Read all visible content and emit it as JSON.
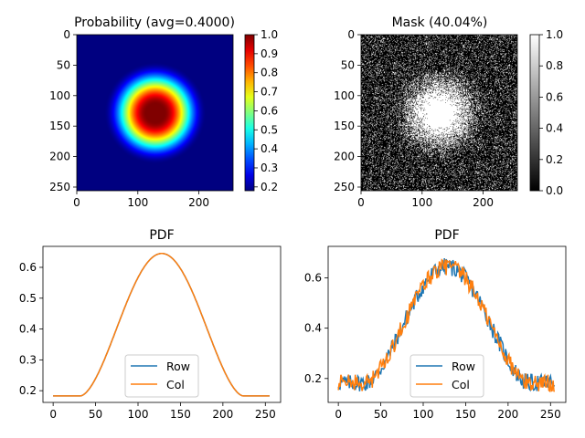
{
  "chart_data": [
    {
      "type": "heatmap",
      "title": "Probability (avg=0.4000)",
      "colormap": "jet",
      "image_size": [
        256,
        256
      ],
      "center": [
        128,
        128
      ],
      "x_ticks": [
        0,
        100,
        200
      ],
      "y_ticks": [
        0,
        50,
        100,
        150,
        200,
        250
      ],
      "colorbar": {
        "range": [
          0.18,
          1.0
        ],
        "ticks": [
          0.2,
          0.3,
          0.4,
          0.5,
          0.6,
          0.7,
          0.8,
          0.9,
          1.0
        ]
      }
    },
    {
      "type": "heatmap",
      "title": "Mask (40.04%)",
      "colormap": "gray",
      "image_size": [
        256,
        256
      ],
      "x_ticks": [
        0,
        100,
        200
      ],
      "y_ticks": [
        0,
        50,
        100,
        150,
        200,
        250
      ],
      "colorbar": {
        "range": [
          0.0,
          1.0
        ],
        "ticks": [
          0.0,
          0.2,
          0.4,
          0.6,
          0.8,
          1.0
        ]
      }
    },
    {
      "type": "line",
      "title": "PDF",
      "xlim": [
        -12,
        268
      ],
      "ylim": [
        0.162,
        0.668
      ],
      "x_ticks": [
        0,
        50,
        100,
        150,
        200,
        250
      ],
      "y_ticks": [
        0.2,
        0.3,
        0.4,
        0.5,
        0.6
      ],
      "legend_position": "lower-center",
      "profile": {
        "base": 0.183,
        "peak": 0.645,
        "center": 128,
        "inner": 32,
        "outer": 96
      },
      "series": [
        {
          "name": "Row",
          "color": "#1f77b4"
        },
        {
          "name": "Col",
          "color": "#ff7f0e"
        }
      ]
    },
    {
      "type": "line",
      "title": "PDF",
      "xlim": [
        -12,
        268
      ],
      "ylim": [
        0.105,
        0.725
      ],
      "x_ticks": [
        0,
        50,
        100,
        150,
        200,
        250
      ],
      "y_ticks": [
        0.2,
        0.4,
        0.6
      ],
      "legend_position": "lower-center",
      "noise_amplitude": 0.035,
      "series": [
        {
          "name": "Row",
          "color": "#1f77b4"
        },
        {
          "name": "Col",
          "color": "#ff7f0e"
        }
      ]
    }
  ]
}
